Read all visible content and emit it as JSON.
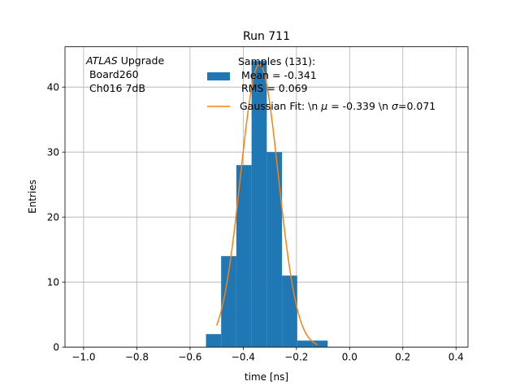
{
  "chart_data": {
    "type": "bar",
    "title": "Run 711",
    "xlabel": "time [ns]",
    "ylabel": "Entries",
    "xlim": [
      -1.07,
      0.445
    ],
    "ylim": [
      0,
      46.2
    ],
    "grid": true,
    "x_ticks": [
      -1.0,
      -0.8,
      -0.6,
      -0.4,
      -0.2,
      0.0,
      0.2,
      0.4
    ],
    "x_tick_labels": [
      "−1.0",
      "−0.8",
      "−0.6",
      "−0.4",
      "−0.2",
      "0.0",
      "0.2",
      "0.4"
    ],
    "y_ticks": [
      0,
      10,
      20,
      30,
      40
    ],
    "y_tick_labels": [
      "0",
      "10",
      "20",
      "30",
      "40"
    ],
    "histogram": {
      "name": "Samples (131):",
      "color": "#1f77b4",
      "bin_edges": [
        -0.54,
        -0.483,
        -0.4259,
        -0.3686,
        -0.3114,
        -0.2541,
        -0.1969,
        -0.1396,
        -0.0824
      ],
      "counts": [
        2,
        14,
        28,
        44,
        30,
        11,
        1,
        1
      ]
    },
    "fit": {
      "name": "Gaussian Fit",
      "color": "#ff7f0e",
      "mu": -0.339,
      "sigma": 0.071,
      "amplitude": 43.5,
      "x_range": [
        -0.5,
        -0.12
      ]
    },
    "annotation_lines": [
      "ATLAS",
      " Upgrade",
      " Board260",
      " Ch016 7dB"
    ],
    "legend": {
      "placement": "top-center",
      "hist_lines": [
        "Samples (131):",
        " Mean = -0.341",
        " RMS = 0.069"
      ],
      "fit_prefix": "Gaussian Fit: \\n ",
      "fit_mu_symbol": "μ",
      "fit_mu_text": " = -0.339 \\n ",
      "fit_sigma_symbol": "σ",
      "fit_sigma_text": "=0.071"
    }
  }
}
